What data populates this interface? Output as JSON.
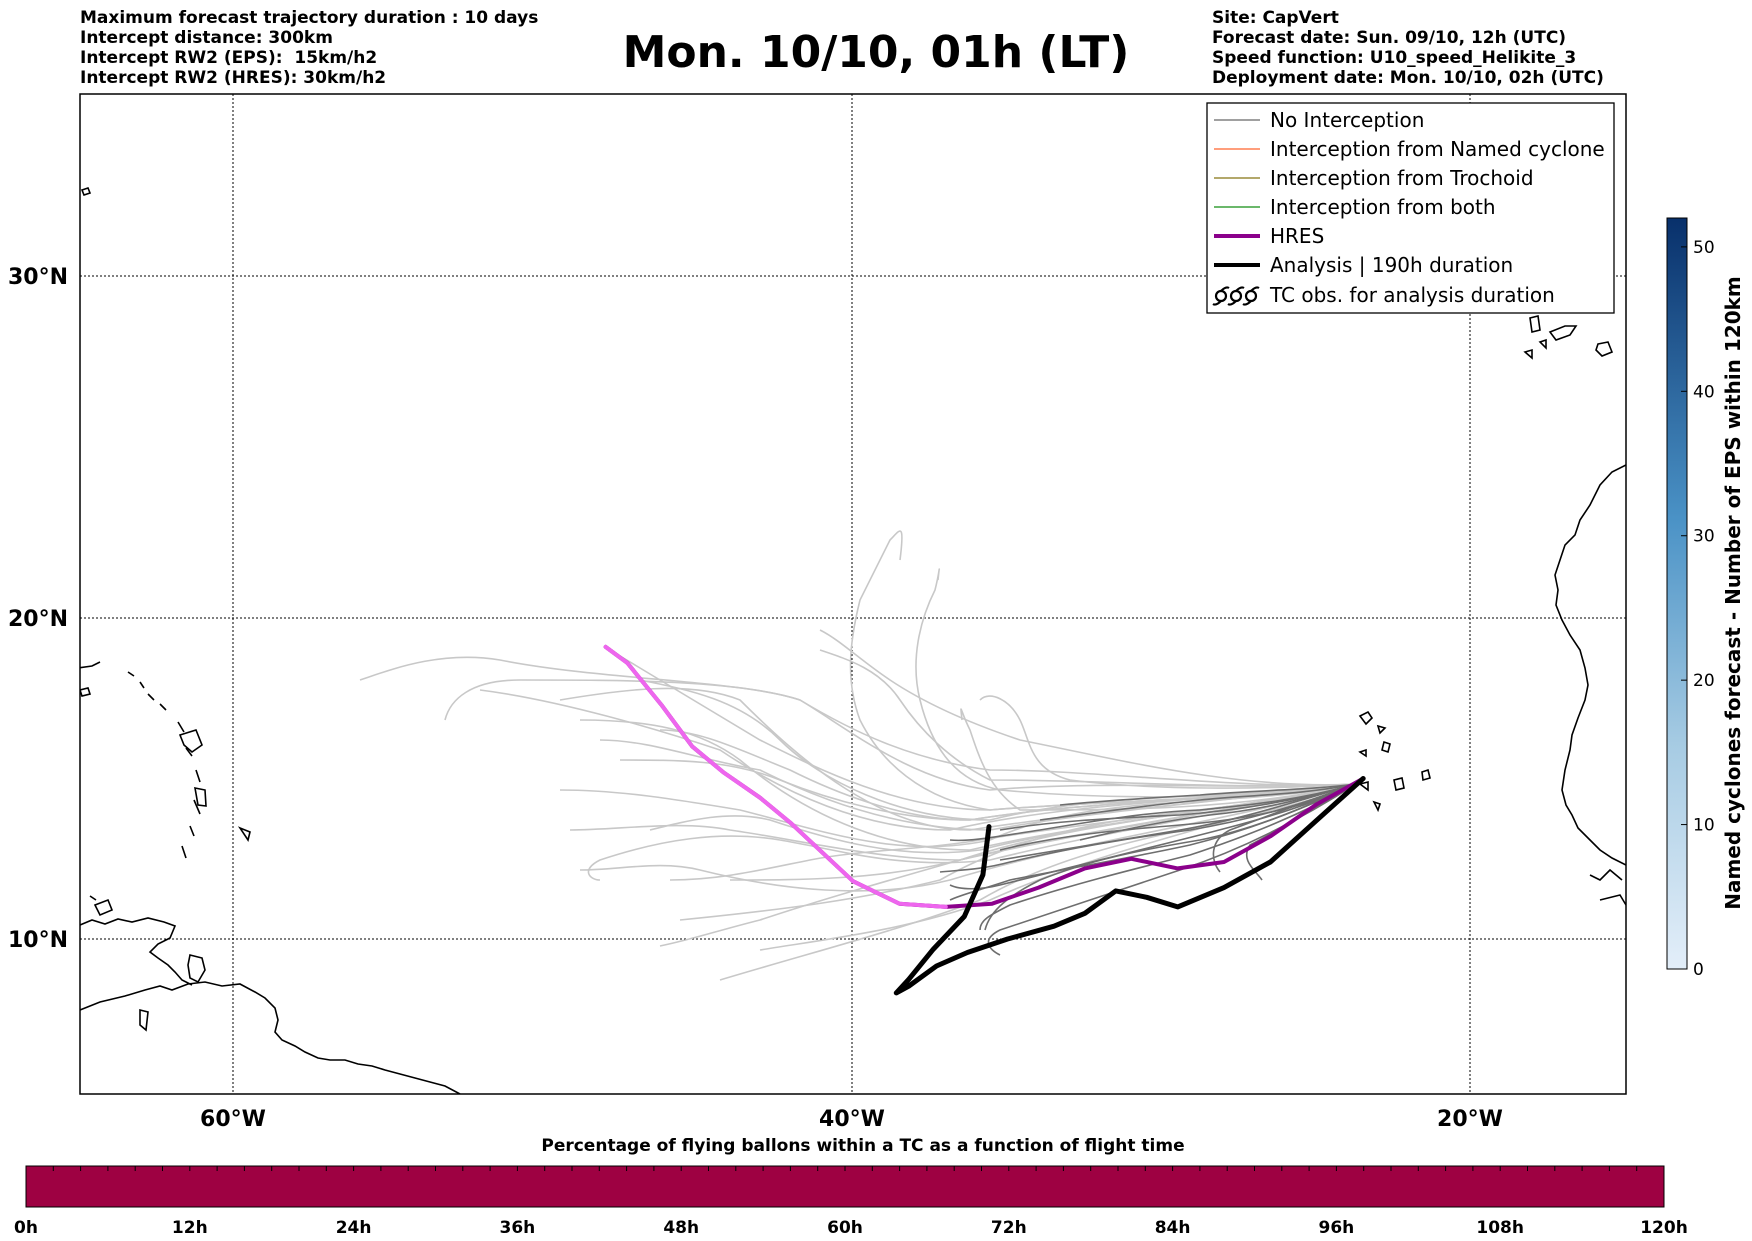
{
  "header": {
    "left": [
      "Maximum forecast trajectory duration : 10 days",
      "Intercept distance: 300km",
      "Intercept RW2 (EPS):  15km/h2",
      "Intercept RW2 (HRES): 30km/h2"
    ],
    "right": [
      "Site: CapVert",
      "Forecast date: Sun. 09/10, 12h (UTC)",
      "Speed function: U10_speed_Helikite_3",
      "Deployment date: Mon. 10/10, 02h (UTC)"
    ],
    "title": "Mon. 10/10, 01h (LT)"
  },
  "map": {
    "lat_labels": [
      "30°N",
      "20°N",
      "10°N"
    ],
    "lon_labels": [
      "60°W",
      "40°W",
      "20°W"
    ],
    "lat_values": [
      30,
      20,
      10
    ],
    "lon_values": [
      -60,
      -40,
      -20
    ],
    "extent": {
      "lon_min": -65,
      "lon_max": -15,
      "lat_min": 5.4,
      "lat_max": 35.3
    },
    "launch_site": {
      "lon": -23.5,
      "lat": 15.0
    }
  },
  "legend": {
    "items": [
      {
        "label": "No Interception",
        "color": "#808080"
      },
      {
        "label": "Interception from Named cyclone",
        "color": "#ff7f50"
      },
      {
        "label": "Interception from Trochoid",
        "color": "#9a8c3a"
      },
      {
        "label": "Interception from both",
        "color": "#3aa03a"
      },
      {
        "label": "HRES",
        "color": "#8b008b"
      },
      {
        "label": "Analysis | 190h duration",
        "color": "#000000"
      },
      {
        "label": "TC obs. for analysis duration",
        "icon": "cyclone-symbols-icon"
      }
    ]
  },
  "colorbar": {
    "label": "Named cyclones forecast - Number of EPS within 120km",
    "ticks": [
      "0",
      "10",
      "20",
      "30",
      "40",
      "50"
    ],
    "tick_values": [
      0,
      10,
      20,
      30,
      40,
      50
    ],
    "range": [
      0,
      52
    ],
    "color_low": "#e3eef9",
    "color_high": "#08306b"
  },
  "bottom_bar": {
    "title": "Percentage of flying ballons within a TC as a function of flight time",
    "ticks": [
      "0h",
      "12h",
      "24h",
      "36h",
      "48h",
      "60h",
      "72h",
      "84h",
      "96h",
      "108h",
      "120h"
    ],
    "fill_color": "#9e0142"
  },
  "chart_data": {
    "type": "line",
    "series": [
      {
        "name": "HRES",
        "color": "#8b008b",
        "points": [
          [
            -23.5,
            15.0
          ],
          [
            -25,
            14.2
          ],
          [
            -26.5,
            13.2
          ],
          [
            -28,
            12.4
          ],
          [
            -29.5,
            12.2
          ],
          [
            -31,
            12.5
          ],
          [
            -32.5,
            12.2
          ],
          [
            -34,
            11.6
          ],
          [
            -35.5,
            11.1
          ],
          [
            -37,
            11.0
          ],
          [
            -38.5,
            11.1
          ],
          [
            -40,
            11.8
          ],
          [
            -41,
            12.7
          ],
          [
            -42,
            13.6
          ],
          [
            -43,
            14.4
          ],
          [
            -44.2,
            15.2
          ],
          [
            -45.2,
            16.0
          ],
          [
            -46.2,
            17.3
          ],
          [
            -47.3,
            18.6
          ],
          [
            -48,
            19.1
          ]
        ]
      },
      {
        "name": "Analysis | 190h duration",
        "color": "#000000",
        "points": [
          [
            -23.5,
            15.0
          ],
          [
            -25,
            13.7
          ],
          [
            -26.5,
            12.4
          ],
          [
            -28,
            11.6
          ],
          [
            -29.5,
            11.0
          ],
          [
            -30.5,
            11.3
          ],
          [
            -31.5,
            11.5
          ],
          [
            -32.5,
            10.8
          ],
          [
            -33.5,
            10.4
          ],
          [
            -35,
            10.0
          ],
          [
            -36.3,
            9.6
          ],
          [
            -37.3,
            9.2
          ],
          [
            -38.2,
            8.6
          ],
          [
            -38.6,
            8.4
          ],
          [
            -38.2,
            8.8
          ],
          [
            -37.4,
            9.7
          ],
          [
            -36.4,
            10.7
          ],
          [
            -35.8,
            12.0
          ],
          [
            -35.6,
            13.5
          ]
        ]
      }
    ],
    "ensemble_members": {
      "no_interception_color": "#808080",
      "count": 50
    }
  }
}
